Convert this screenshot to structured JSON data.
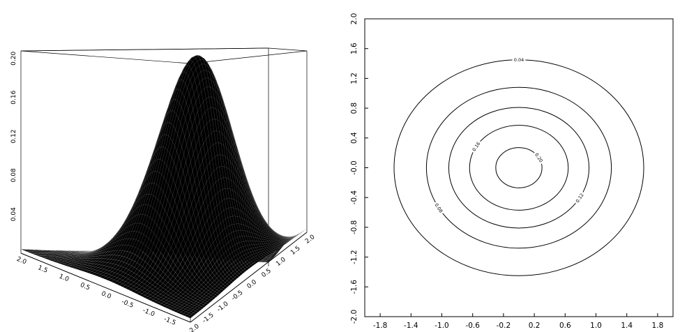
{
  "chart_data": [
    {
      "type": "surface",
      "title": "",
      "xlabel": "",
      "ylabel": "",
      "zlabel": "",
      "function": "gaussian",
      "x_range": [
        -2.0,
        2.0
      ],
      "y_range": [
        -2.0,
        2.0
      ],
      "z_range": [
        0.0,
        0.24
      ],
      "peak": {
        "x": 0.0,
        "y": 0.0,
        "z": 0.215
      },
      "x_ticks": [
        "2.0",
        "1.5",
        "1.0",
        "0.5",
        "0.0",
        "-0.5",
        "-1.0",
        "-1.5"
      ],
      "y_ticks": [
        "-2.0",
        "-1.5",
        "-1.0",
        "-0.5",
        "0.0",
        "0.5",
        "1.0",
        "1.5",
        "2.0"
      ],
      "z_ticks": [
        "0.04",
        "0.08",
        "0.12",
        "0.16",
        "0.20"
      ],
      "surface_color": "#000000"
    },
    {
      "type": "contour",
      "title": "",
      "xlabel": "",
      "ylabel": "",
      "xlim": [
        -2.0,
        2.0
      ],
      "ylim": [
        -2.0,
        2.0
      ],
      "x_ticks": [
        "-1.8",
        "-1.4",
        "-1.0",
        "-0.6",
        "-0.2",
        "0.2",
        "0.6",
        "1.0",
        "1.4",
        "1.8"
      ],
      "y_ticks": [
        "2.0",
        "1.6",
        "1.2",
        "0.8",
        "0.4",
        "-0.0",
        "-0.4",
        "-0.8",
        "-1.2",
        "-1.6",
        "-2.0"
      ],
      "levels": [
        {
          "value": 0.04,
          "label": "0.04",
          "rx": 1.62,
          "ry": 1.45
        },
        {
          "value": 0.08,
          "label": "0.08",
          "rx": 1.2,
          "ry": 1.08
        },
        {
          "value": 0.12,
          "label": "0.12",
          "rx": 0.91,
          "ry": 0.81
        },
        {
          "value": 0.16,
          "label": "0.16",
          "rx": 0.64,
          "ry": 0.57
        },
        {
          "value": 0.2,
          "label": "0.20",
          "rx": 0.3,
          "ry": 0.27
        }
      ],
      "line_color": "#000000"
    }
  ]
}
